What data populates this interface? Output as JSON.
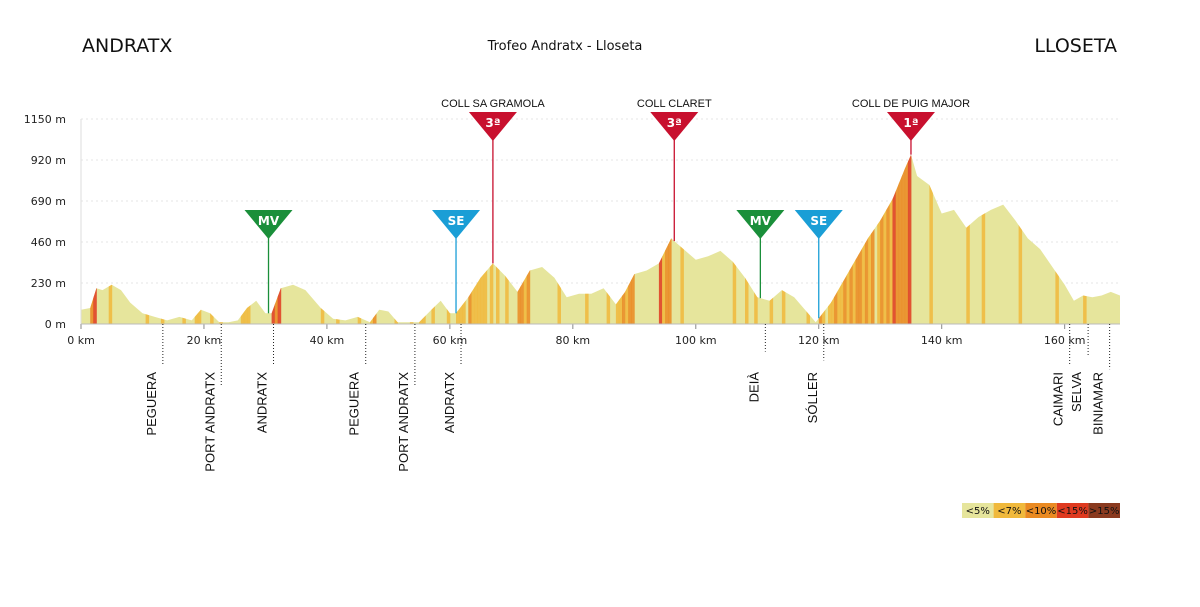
{
  "header": {
    "start": "ANDRATX",
    "title": "Trofeo Andratx - Lloseta",
    "finish": "LLOSETA"
  },
  "colors": {
    "grade_lt5": "#e6e59c",
    "grade_lt7": "#f0b93c",
    "grade_lt10": "#ea8a22",
    "grade_lt15": "#df3a20",
    "grade_gt15": "#8a3a1f",
    "cat3": "#c8102e",
    "cat1": "#c8102e",
    "mv": "#1a8f3a",
    "se": "#1a9ed6",
    "grid": "#e6e6e6"
  },
  "chart_data": {
    "type": "area",
    "title": "Trofeo Andratx - Lloseta",
    "xlabel": "",
    "ylabel": "",
    "xlim": [
      0,
      169
    ],
    "ylim": [
      0,
      1150
    ],
    "x_ticks": [
      0,
      20,
      40,
      60,
      80,
      100,
      120,
      140,
      160
    ],
    "x_tick_labels": [
      "0 km",
      "20 km",
      "40 km",
      "60 km",
      "80 km",
      "100 km",
      "120 km",
      "140 km",
      "160 km"
    ],
    "y_ticks": [
      0,
      230,
      460,
      690,
      920,
      1150
    ],
    "y_tick_labels": [
      "0 m",
      "230 m",
      "460 m",
      "690 m",
      "920 m",
      "1150 m"
    ],
    "grid": true,
    "profile": [
      [
        0,
        80
      ],
      [
        1.5,
        90
      ],
      [
        2.5,
        200
      ],
      [
        3.5,
        190
      ],
      [
        5,
        220
      ],
      [
        6.5,
        190
      ],
      [
        8,
        120
      ],
      [
        10,
        60
      ],
      [
        12,
        40
      ],
      [
        14,
        20
      ],
      [
        16,
        40
      ],
      [
        18,
        20
      ],
      [
        19.5,
        80
      ],
      [
        21,
        60
      ],
      [
        22.5,
        10
      ],
      [
        24,
        10
      ],
      [
        25.5,
        20
      ],
      [
        27,
        90
      ],
      [
        28.5,
        130
      ],
      [
        30,
        60
      ],
      [
        31,
        60
      ],
      [
        32.5,
        200
      ],
      [
        34.5,
        220
      ],
      [
        36.5,
        190
      ],
      [
        39,
        90
      ],
      [
        41,
        30
      ],
      [
        43,
        20
      ],
      [
        45,
        40
      ],
      [
        47,
        10
      ],
      [
        48.5,
        80
      ],
      [
        50,
        70
      ],
      [
        51.5,
        10
      ],
      [
        55,
        10
      ],
      [
        57,
        80
      ],
      [
        58.5,
        130
      ],
      [
        60,
        60
      ],
      [
        61,
        60
      ],
      [
        63,
        150
      ],
      [
        65,
        260
      ],
      [
        67,
        340
      ],
      [
        69,
        270
      ],
      [
        71,
        180
      ],
      [
        73,
        300
      ],
      [
        75,
        320
      ],
      [
        77,
        260
      ],
      [
        79,
        150
      ],
      [
        81,
        170
      ],
      [
        83,
        170
      ],
      [
        85,
        200
      ],
      [
        87,
        110
      ],
      [
        88.5,
        180
      ],
      [
        90,
        280
      ],
      [
        92,
        300
      ],
      [
        94,
        340
      ],
      [
        96,
        480
      ],
      [
        98,
        420
      ],
      [
        100,
        360
      ],
      [
        102,
        380
      ],
      [
        104,
        410
      ],
      [
        106,
        350
      ],
      [
        108,
        260
      ],
      [
        110,
        150
      ],
      [
        112,
        130
      ],
      [
        114,
        190
      ],
      [
        116,
        150
      ],
      [
        118,
        70
      ],
      [
        119.5,
        10
      ],
      [
        122,
        120
      ],
      [
        124,
        240
      ],
      [
        126,
        360
      ],
      [
        128,
        480
      ],
      [
        130,
        580
      ],
      [
        132,
        700
      ],
      [
        134,
        870
      ],
      [
        135,
        950
      ],
      [
        136,
        830
      ],
      [
        138,
        780
      ],
      [
        140,
        620
      ],
      [
        142,
        640
      ],
      [
        144,
        540
      ],
      [
        146,
        600
      ],
      [
        148,
        640
      ],
      [
        150,
        670
      ],
      [
        152,
        580
      ],
      [
        154,
        480
      ],
      [
        156,
        420
      ],
      [
        158,
        320
      ],
      [
        160,
        220
      ],
      [
        161.5,
        130
      ],
      [
        163,
        160
      ],
      [
        164.5,
        150
      ],
      [
        166,
        160
      ],
      [
        167.5,
        180
      ],
      [
        169,
        160
      ]
    ],
    "grade_legend": [
      "<5%",
      "<7%",
      "<10%",
      "<15%",
      ">15%"
    ],
    "climbs": [
      {
        "name": "COLL SA GRAMOLA",
        "category": "3ª",
        "km": 67,
        "color": "#c8102e"
      },
      {
        "name": "COLL CLARET",
        "category": "3ª",
        "km": 96.5,
        "color": "#c8102e"
      },
      {
        "name": "COLL DE PUIG MAJOR",
        "category": "1ª",
        "km": 135,
        "color": "#c8102e"
      }
    ],
    "sprints": [
      {
        "label": "MV",
        "km": 30.5,
        "color": "#1a8f3a"
      },
      {
        "label": "SE",
        "km": 61,
        "color": "#1a9ed6"
      },
      {
        "label": "MV",
        "km": 110.5,
        "color": "#1a8f3a"
      },
      {
        "label": "SE",
        "km": 120,
        "color": "#1a9ed6"
      }
    ],
    "places": [
      {
        "name": "PEGUERA",
        "km": 12.5
      },
      {
        "name": "PORT ANDRATX",
        "km": 22
      },
      {
        "name": "ANDRATX",
        "km": 30.5
      },
      {
        "name": "PEGUERA",
        "km": 45.5
      },
      {
        "name": "PORT ANDRATX",
        "km": 53.5
      },
      {
        "name": "ANDRATX",
        "km": 61
      },
      {
        "name": "DEIÀ",
        "km": 110.5
      },
      {
        "name": "SÓLLER",
        "km": 120
      },
      {
        "name": "CAIMARI",
        "km": 160
      },
      {
        "name": "SELVA",
        "km": 163
      },
      {
        "name": "BINIAMAR",
        "km": 166.5
      }
    ]
  }
}
